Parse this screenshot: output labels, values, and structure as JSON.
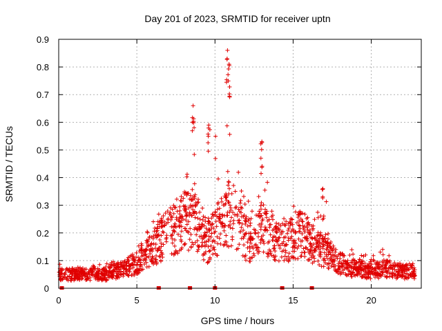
{
  "chart_data": {
    "type": "scatter",
    "title": "Day 201 of 2023, SRMTID for receiver uptn",
    "xlabel": "GPS time / hours",
    "ylabel": "SRMTID / TECUs",
    "xlim": [
      0,
      23.2
    ],
    "ylim": [
      0,
      0.9
    ],
    "xticks": [
      0,
      5,
      10,
      15,
      20
    ],
    "xtick_labels": [
      "0",
      "5",
      "10",
      "15",
      "20"
    ],
    "yticks": [
      0,
      0.1,
      0.2,
      0.3,
      0.4,
      0.5,
      0.6,
      0.7,
      0.8,
      0.9
    ],
    "ytick_labels": [
      "0",
      "0.1",
      "0.2",
      "0.3",
      "0.4",
      "0.5",
      "0.6",
      "0.7",
      "0.8",
      "0.9"
    ],
    "grid": true,
    "marker": "plus",
    "colors": {
      "series": "#e00000",
      "grid": "#b0b0b0",
      "axes": "#000000"
    },
    "data_gap_markers_x": [
      0.2,
      6.4,
      8.4,
      10.0,
      14.3,
      16.2
    ],
    "envelope": {
      "description": "Approximate per-hour typical value and upper spread of the SRMTID point cloud",
      "hours": [
        0,
        1,
        2,
        3,
        4,
        5,
        5.5,
        6,
        6.5,
        7,
        7.5,
        8,
        8.5,
        9,
        9.5,
        10,
        10.5,
        11,
        11.5,
        12,
        12.5,
        13,
        13.5,
        14,
        14.5,
        15,
        15.5,
        16,
        16.5,
        17,
        17.5,
        18,
        19,
        20,
        21,
        22,
        22.8
      ],
      "median": [
        0.05,
        0.05,
        0.05,
        0.05,
        0.07,
        0.09,
        0.12,
        0.14,
        0.17,
        0.2,
        0.22,
        0.24,
        0.25,
        0.22,
        0.16,
        0.2,
        0.24,
        0.28,
        0.24,
        0.18,
        0.17,
        0.22,
        0.2,
        0.16,
        0.16,
        0.18,
        0.2,
        0.17,
        0.15,
        0.14,
        0.11,
        0.09,
        0.07,
        0.06,
        0.07,
        0.06,
        0.06
      ],
      "upper": [
        0.09,
        0.08,
        0.08,
        0.09,
        0.11,
        0.16,
        0.22,
        0.24,
        0.28,
        0.32,
        0.35,
        0.4,
        0.66,
        0.38,
        0.3,
        0.59,
        0.42,
        0.86,
        0.5,
        0.32,
        0.3,
        0.53,
        0.42,
        0.3,
        0.28,
        0.33,
        0.33,
        0.3,
        0.28,
        0.36,
        0.2,
        0.16,
        0.14,
        0.12,
        0.15,
        0.1,
        0.1
      ]
    },
    "peaks": [
      {
        "x": 8.6,
        "y": 0.66
      },
      {
        "x": 9.6,
        "y": 0.59
      },
      {
        "x": 10.8,
        "y": 0.86
      },
      {
        "x": 10.9,
        "y": 0.81
      },
      {
        "x": 13.0,
        "y": 0.53
      },
      {
        "x": 16.9,
        "y": 0.36
      }
    ]
  }
}
